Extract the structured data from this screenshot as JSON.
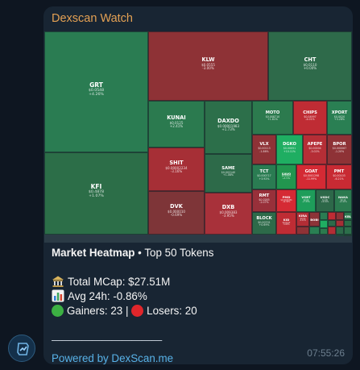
{
  "sender": "Dexscan Watch",
  "heatmap": {
    "tiles": [
      {
        "symbol": "GRT",
        "price": "$0.0548",
        "change": "+4.26%",
        "color": "#2a7c52"
      },
      {
        "symbol": "KFI",
        "price": "$0.4878",
        "change": "+1.07%",
        "color": "#2c6e48"
      },
      {
        "symbol": "KLW",
        "price": "$0.0555",
        "change": "-3.00%",
        "color": "#8e3236"
      },
      {
        "symbol": "CHT",
        "price": "$0.0110",
        "change": "+0.00%",
        "color": "#2e6a4a"
      },
      {
        "symbol": "KUNAI",
        "price": "$0.0125",
        "change": "+2.41%",
        "color": "#2b7a4f"
      },
      {
        "symbol": "DAXDO",
        "price": "$0.00001983",
        "change": "+1.73%",
        "color": "#2c6f4a"
      },
      {
        "symbol": "MOTO",
        "price": "$0.008710",
        "change": "+1.81%",
        "color": "#2c7a4e"
      },
      {
        "symbol": "CHIPS",
        "price": "$0.04997",
        "change": "-4.01%",
        "color": "#bf2c34"
      },
      {
        "symbol": "XPORT",
        "price": "$0.0020",
        "change": "+3.28%",
        "color": "#2a7f53"
      },
      {
        "symbol": "SHIT",
        "price": "$0.00002234",
        "change": "-3.16%",
        "color": "#a62f36"
      },
      {
        "symbol": "SAME",
        "price": "$0.002140",
        "change": "+1.08%",
        "color": "#2d6a49"
      },
      {
        "symbol": "DVK",
        "price": "$0.000010",
        "change": "-0.69%",
        "color": "#7e3538"
      },
      {
        "symbol": "DXB",
        "price": "$0.009383",
        "change": "-3.95%",
        "color": "#a8313a"
      },
      {
        "symbol": "VLX",
        "price": "$0.00113",
        "change": "-1.86%",
        "color": "#8e3236"
      },
      {
        "symbol": "DGKO",
        "price": "$0.00051",
        "change": "+10.11%",
        "color": "#1fae62"
      },
      {
        "symbol": "APEPE",
        "price": "$0.00004",
        "change": "-3.02%",
        "color": "#b52e36"
      },
      {
        "symbol": "BPOR",
        "price": "$0.000067",
        "change": "-1.20%",
        "color": "#8e3236"
      },
      {
        "symbol": "TCT",
        "price": "$0.000717",
        "change": "+3.92%",
        "color": "#2a7c52"
      },
      {
        "symbol": "SAVO",
        "price": "$0.00401",
        "change": "+5.71%",
        "color": "#22964f"
      },
      {
        "symbol": "GOAT",
        "price": "$0.0001298",
        "change": "-11.99%",
        "color": "#d42a34"
      },
      {
        "symbol": "PMT",
        "price": "$0.00103",
        "change": "-6.21%",
        "color": "#c82a33"
      },
      {
        "symbol": "RMT",
        "price": "$0.0285",
        "change": "-2.07%",
        "color": "#98303a"
      },
      {
        "symbol": "PMD",
        "price": "$0.0000386",
        "change": "-12.30%",
        "color": "#d52a34"
      },
      {
        "symbol": "VSBT",
        "price": "$0.00",
        "change": "+7.33%",
        "color": "#1e9d5a"
      },
      {
        "symbol": "USDC",
        "price": "$1.00",
        "change": "+0.01%",
        "color": "#2d6849"
      },
      {
        "symbol": "NAKA",
        "price": "$0.14",
        "change": "+2.11%",
        "color": "#2b7a4f"
      },
      {
        "symbol": "BLOCK",
        "price": "$0.00701",
        "change": "+0.69%",
        "color": "#2d6a49"
      },
      {
        "symbol": "KID",
        "price": "$0.0142",
        "change": "-5.89%",
        "color": "#bf2c34"
      },
      {
        "symbol": "KIRA",
        "price": "$0.00",
        "change": "-4.01%",
        "color": "#b32d35"
      },
      {
        "symbol": "BOBI",
        "price": "",
        "change": "",
        "color": "#8c3438"
      },
      {
        "symbol": "",
        "price": "",
        "change": "",
        "color": "#2a7c52"
      },
      {
        "symbol": "",
        "price": "",
        "change": "",
        "color": "#bf2c34"
      },
      {
        "symbol": "",
        "price": "",
        "change": "",
        "color": "#8e3236"
      },
      {
        "symbol": "KBLOK",
        "price": "",
        "change": "",
        "color": "#2c7a4e"
      },
      {
        "symbol": "",
        "price": "",
        "change": "",
        "color": "#1fae62"
      },
      {
        "symbol": "",
        "price": "",
        "change": "",
        "color": "#2d6a49"
      },
      {
        "symbol": "",
        "price": "",
        "change": "",
        "color": "#a62f36"
      },
      {
        "symbol": "",
        "price": "",
        "change": "",
        "color": "#2c6e48"
      },
      {
        "symbol": "",
        "price": "",
        "change": "",
        "color": "#8e3236"
      },
      {
        "symbol": "",
        "price": "",
        "change": "",
        "color": "#2a7f53"
      },
      {
        "symbol": "",
        "price": "",
        "change": "",
        "color": "#2c7a4e"
      },
      {
        "symbol": "",
        "price": "",
        "change": "",
        "color": "#b32d35"
      },
      {
        "symbol": "",
        "price": "",
        "change": "",
        "color": "#2d6a49"
      },
      {
        "symbol": "",
        "price": "",
        "change": "",
        "color": "#2c6f4a"
      },
      {
        "symbol": "",
        "price": "",
        "change": "",
        "color": "#2a7c52"
      },
      {
        "symbol": "",
        "price": "",
        "change": "",
        "color": "#2e6a4a"
      }
    ]
  },
  "caption": {
    "title_bold": "Market Heatmap",
    "title_rest": " • Top 50 Tokens",
    "mcap": "Total MCap: $27.51M",
    "avg": "Avg 24h: -0.86%",
    "gainers": "Gainers: 23",
    "separator": " | ",
    "losers": "Losers: 20",
    "divider": "———————————",
    "powered": "Powered by DexScan.me"
  },
  "time": "07:55:26",
  "icons": {
    "mcap": "bank-icon",
    "avg": "bar-chart-icon",
    "gainers": "green-circle-icon",
    "losers": "red-circle-icon"
  }
}
